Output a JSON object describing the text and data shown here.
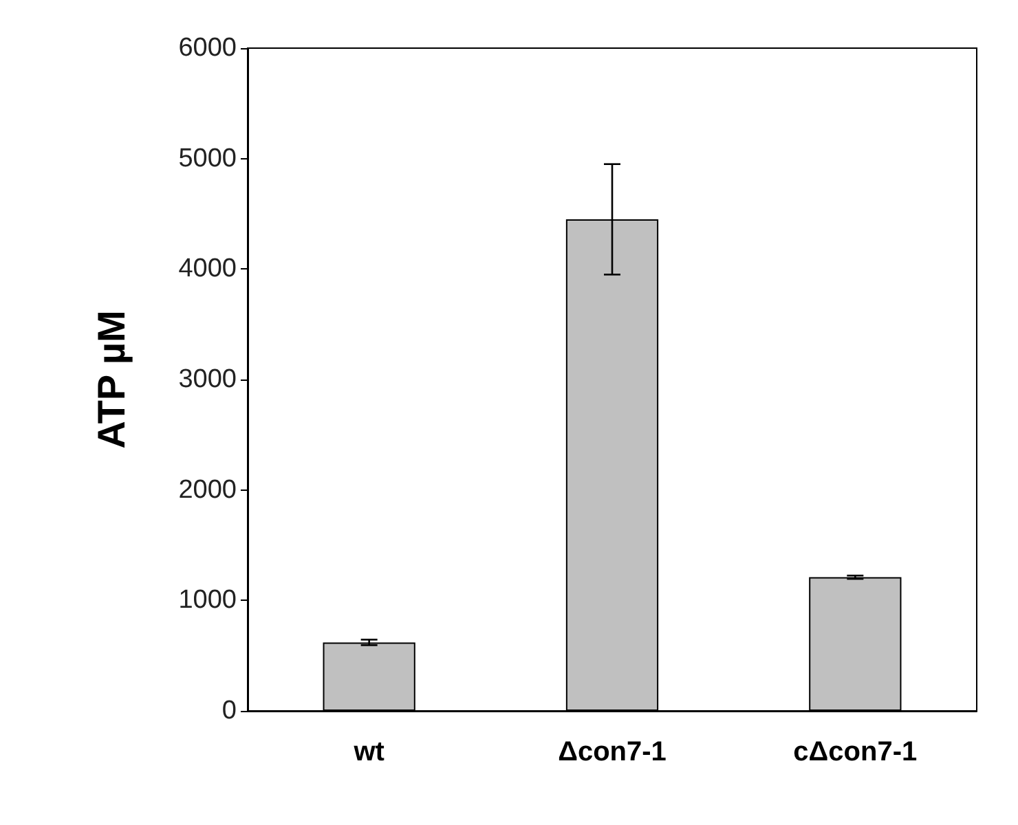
{
  "chart_data": {
    "type": "bar",
    "ylabel": "ATP µM",
    "categories": [
      "wt",
      "Δcon7-1",
      "cΔcon7-1"
    ],
    "values": [
      620,
      4450,
      1210
    ],
    "errors": [
      25,
      500,
      15
    ],
    "color": "#c0c0c0",
    "ylim": [
      0,
      6000
    ],
    "yticks": [
      0,
      1000,
      2000,
      3000,
      4000,
      5000,
      6000
    ],
    "grid": false
  }
}
